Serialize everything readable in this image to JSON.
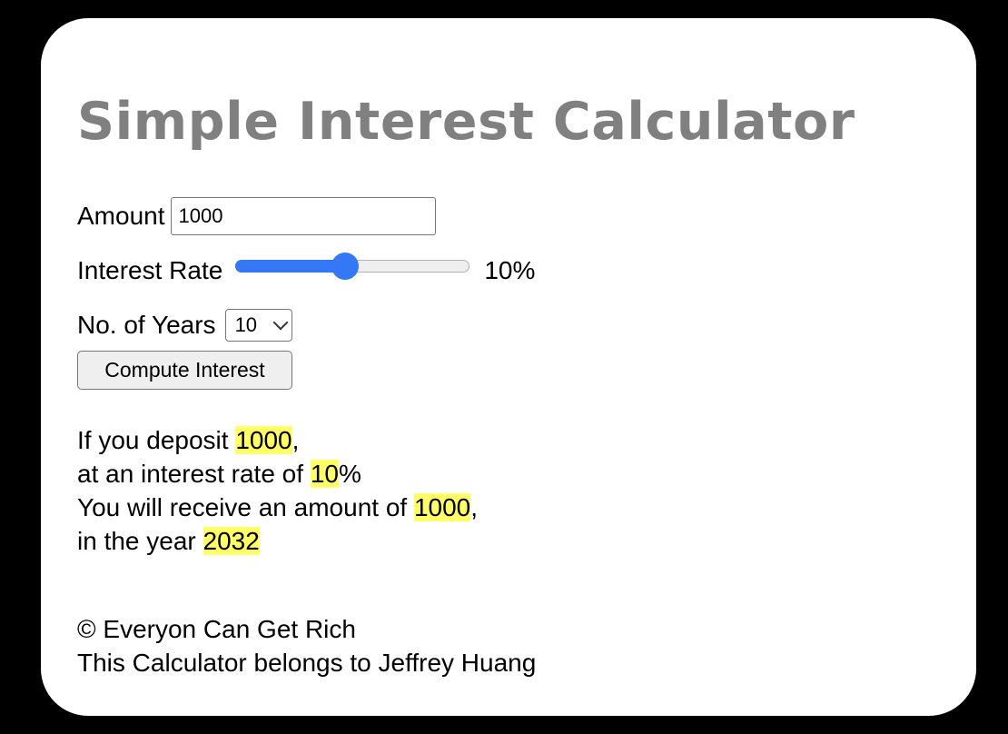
{
  "title": "Simple Interest Calculator",
  "form": {
    "amount_label": "Amount",
    "amount_value": "1000",
    "rate_label": "Interest Rate",
    "rate_value": 10,
    "rate_display": "10%",
    "rate_slider_fraction": 0.47,
    "years_label": "No. of Years",
    "years_selected": "10",
    "compute_label": "Compute Interest"
  },
  "result": {
    "deposit_prefix": "If you deposit ",
    "deposit_value": "1000",
    "deposit_suffix": ",",
    "rate_prefix": "at an interest rate of ",
    "rate_value": "10",
    "rate_suffix": "%",
    "receive_prefix": "You will receive an amount of ",
    "receive_value": "1000",
    "receive_suffix": ",",
    "year_prefix": "in the year ",
    "year_value": "2032"
  },
  "footer": {
    "copyright": "© Everyon Can Get Rich",
    "owner": "This Calculator belongs to Jeffrey Huang"
  },
  "colors": {
    "accent": "#3478f6",
    "highlight": "#ffff66",
    "title": "#808080"
  }
}
